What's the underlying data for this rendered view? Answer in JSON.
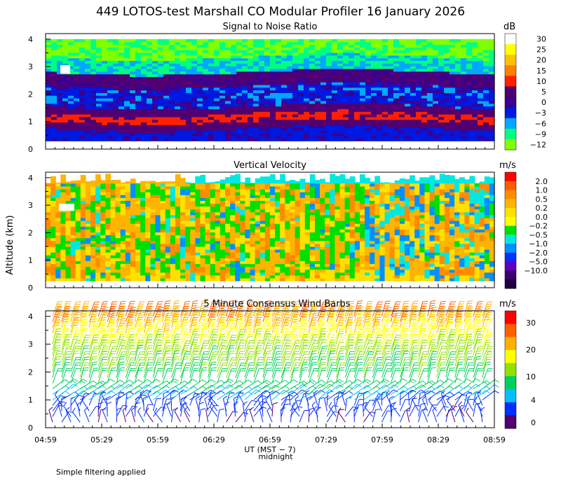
{
  "title": "449 LOTOS-test Marshall CO Modular Profiler 16 January 2026",
  "footnote": "Simple filtering applied",
  "colors": {
    "snr_scale": [
      "#ffffff",
      "#ffff00",
      "#ffc000",
      "#ff8000",
      "#ff2000",
      "#500070",
      "#3c0090",
      "#0018e0",
      "#00a8ff",
      "#00ff80",
      "#80ff00"
    ],
    "velocity_scale": [
      "#ff0000",
      "#ff5a00",
      "#ff8c00",
      "#ffb400",
      "#ffe000",
      "#ffff00",
      "#00e000",
      "#00e8e0",
      "#0090ff",
      "#0030ff",
      "#6000c0",
      "#3c0070",
      "#200040"
    ],
    "wind_scale": [
      "#ff0000",
      "#ff6000",
      "#ffb000",
      "#ffff00",
      "#90e000",
      "#00d060",
      "#00c0ff",
      "#0030ff",
      "#500070"
    ]
  },
  "chart_data": [
    {
      "type": "heatmap",
      "title": "Signal to Noise Ratio",
      "colorbar_label": "dB",
      "colorbar_ticks": [
        "30",
        "25",
        "20",
        "15",
        "10",
        "5",
        "0",
        "−3",
        "−6",
        "−9",
        "−12"
      ],
      "ylim": [
        0,
        4
      ],
      "y_ticks": [
        "0",
        "1",
        "2",
        "3",
        "4"
      ],
      "layers": [
        {
          "altitude_range_km": [
            0.3,
            0.75
          ],
          "level_db": -3
        },
        {
          "altitude_range_km": [
            0.75,
            1.0
          ],
          "level_db": 5
        },
        {
          "altitude_range_km": [
            1.0,
            1.3
          ],
          "level_db": 10
        },
        {
          "altitude_range_km": [
            1.3,
            2.3
          ],
          "level_db": -3
        },
        {
          "altitude_range_km": [
            2.3,
            2.8
          ],
          "level_db": 5
        },
        {
          "altitude_range_km": [
            2.8,
            3.4
          ],
          "level_db": -9
        },
        {
          "altitude_range_km": [
            3.4,
            4.0
          ],
          "level_db": -12
        }
      ]
    },
    {
      "type": "heatmap",
      "title": "Vertical Velocity",
      "colorbar_label": "m/s",
      "colorbar_ticks": [
        "2.0",
        "1.0",
        "0.5",
        "0.2",
        "0.0",
        "−0.2",
        "−0.5",
        "−1.0",
        "−2.0",
        "−5.0",
        "−10.0"
      ],
      "ylim": [
        0,
        4
      ],
      "y_ticks": [
        "0",
        "1",
        "2",
        "3",
        "4"
      ],
      "dominant_range_ms": [
        -0.5,
        0.5
      ]
    },
    {
      "type": "scatter",
      "title": "5 Minute Consensus Wind Barbs",
      "colorbar_label": "m/s",
      "colorbar_ticks": [
        "30",
        "20",
        "10",
        "4",
        "0"
      ],
      "ylim": [
        0,
        4
      ],
      "y_ticks": [
        "0",
        "1",
        "2",
        "3",
        "4"
      ],
      "speed_profile": [
        {
          "altitude_km": 0.3,
          "speed_ms": 2
        },
        {
          "altitude_km": 1.0,
          "speed_ms": 4
        },
        {
          "altitude_km": 1.5,
          "speed_ms": 8
        },
        {
          "altitude_km": 2.5,
          "speed_ms": 12
        },
        {
          "altitude_km": 3.5,
          "speed_ms": 20
        },
        {
          "altitude_km": 4.0,
          "speed_ms": 26
        }
      ]
    }
  ],
  "x_axis": {
    "ticks": [
      "04:59",
      "05:29",
      "05:59",
      "06:29",
      "06:59",
      "07:29",
      "07:59",
      "08:29",
      "08:59"
    ],
    "xlabel": "UT (MST − 7)",
    "midnight_label": "midnight"
  },
  "y_axis": {
    "label": "Altitude (km)"
  }
}
